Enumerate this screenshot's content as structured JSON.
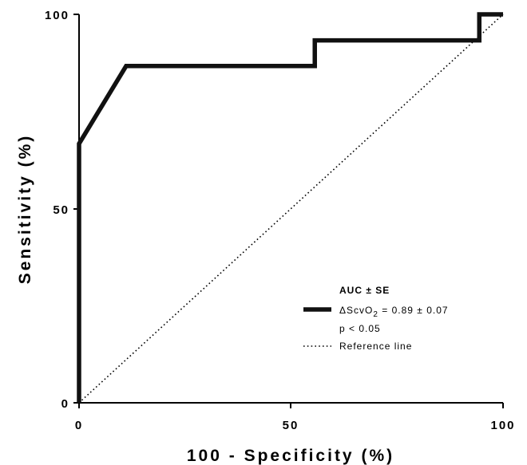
{
  "chart_data": {
    "type": "line",
    "xlabel": "100 - Specificity (%)",
    "ylabel": "Sensitivity (%)",
    "xlim": [
      0,
      100
    ],
    "ylim": [
      0,
      100
    ],
    "x_ticks": [
      "0",
      "50",
      "100"
    ],
    "y_ticks": [
      "0",
      "50",
      "100"
    ],
    "grid": false,
    "legend_position": "lower-right",
    "legend": {
      "title": "AUC ± SE",
      "roc_label_symbol": "ΔScvO",
      "roc_label_subscript": "2",
      "roc_label_value": " = 0.89 ± 0.07",
      "p_text": "p < 0.05",
      "reference_label": "Reference line"
    },
    "series": [
      {
        "kind": "roc",
        "x": [
          0,
          0,
          11.1,
          55.6,
          55.6,
          94.4,
          94.4,
          100
        ],
        "y": [
          0,
          66.7,
          86.7,
          86.7,
          93.3,
          93.3,
          100,
          100
        ],
        "color": "#111111"
      },
      {
        "kind": "reference",
        "x": [
          0,
          100
        ],
        "y": [
          0,
          100
        ],
        "color": "#000000"
      }
    ]
  }
}
